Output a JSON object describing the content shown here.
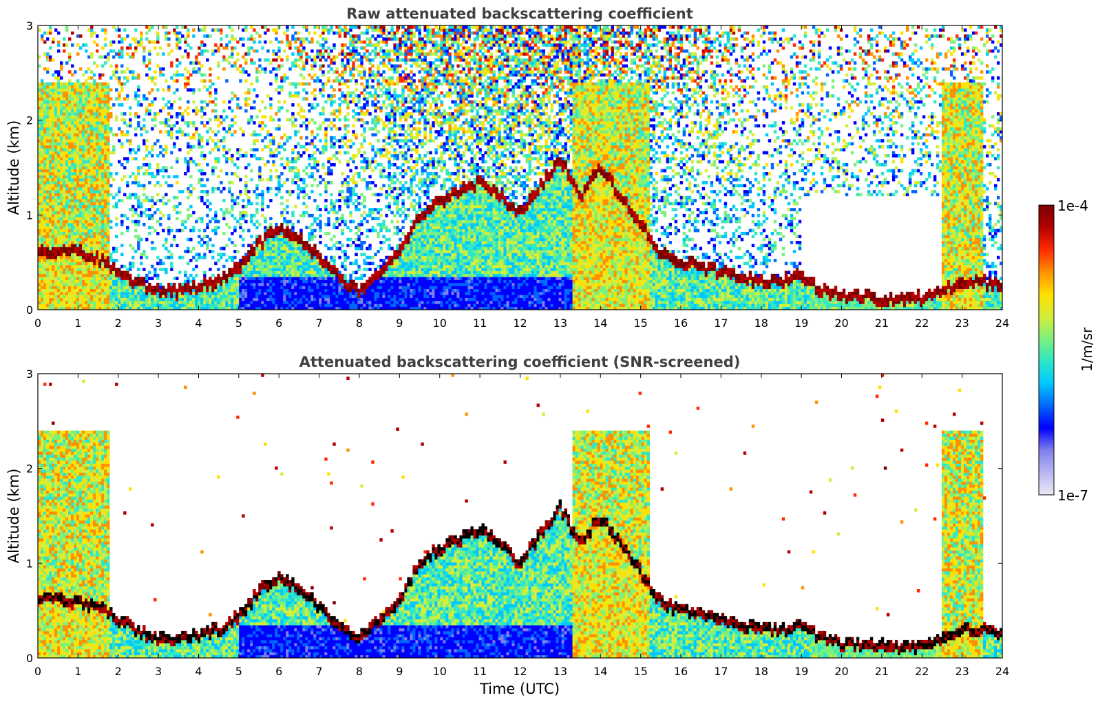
{
  "chart_data": [
    {
      "type": "heatmap",
      "title": "Raw attenuated backscattering coefficient",
      "xlabel": "",
      "ylabel": "Altitude (km)",
      "xlim": [
        0,
        24
      ],
      "ylim": [
        0,
        3
      ],
      "xticks": [
        "0",
        "1",
        "2",
        "3",
        "4",
        "5",
        "6",
        "7",
        "8",
        "9",
        "10",
        "11",
        "12",
        "13",
        "14",
        "15",
        "16",
        "17",
        "18",
        "19",
        "20",
        "21",
        "22",
        "23",
        "24"
      ],
      "yticks": [
        "0",
        "1",
        "2",
        "3"
      ],
      "screened": false
    },
    {
      "type": "heatmap",
      "title": "Attenuated backscattering coefficient (SNR-screened)",
      "xlabel": "Time (UTC)",
      "ylabel": "Altitude (km)",
      "xlim": [
        0,
        24
      ],
      "ylim": [
        0,
        3
      ],
      "xticks": [
        "0",
        "1",
        "2",
        "3",
        "4",
        "5",
        "6",
        "7",
        "8",
        "9",
        "10",
        "11",
        "12",
        "13",
        "14",
        "15",
        "16",
        "17",
        "18",
        "19",
        "20",
        "21",
        "22",
        "23",
        "24"
      ],
      "yticks": [
        "0",
        "1",
        "2",
        "3"
      ],
      "screened": true
    }
  ],
  "colorbar": {
    "label": "1/m/sr",
    "max_label": "1e-4",
    "min_label": "1e-7",
    "scale": "log",
    "range": [
      1e-07,
      0.0001
    ],
    "colormap": [
      "#ece9f7",
      "#b8b6f0",
      "#7f7fee",
      "#0000ff",
      "#0066ff",
      "#00c8ff",
      "#2ee6c8",
      "#7cf07c",
      "#d4ee3a",
      "#ffe000",
      "#ff9000",
      "#ff2a00",
      "#b40000",
      "#7a0000"
    ]
  },
  "features": {
    "cloud_layer": [
      [
        0,
        0.6
      ],
      [
        0.5,
        0.62
      ],
      [
        1,
        0.6
      ],
      [
        1.5,
        0.55
      ],
      [
        2,
        0.4
      ],
      [
        2.5,
        0.28
      ],
      [
        3,
        0.2
      ],
      [
        3.5,
        0.2
      ],
      [
        4,
        0.25
      ],
      [
        4.5,
        0.3
      ],
      [
        5,
        0.45
      ],
      [
        5.5,
        0.7
      ],
      [
        6,
        0.85
      ],
      [
        6.5,
        0.75
      ],
      [
        7,
        0.55
      ],
      [
        7.5,
        0.35
      ],
      [
        8,
        0.2
      ],
      [
        9,
        0.6
      ],
      [
        9.5,
        1.0
      ],
      [
        10,
        1.15
      ],
      [
        10.5,
        1.25
      ],
      [
        11,
        1.35
      ],
      [
        11.5,
        1.2
      ],
      [
        12,
        1.0
      ],
      [
        12.5,
        1.3
      ],
      [
        13,
        1.6
      ],
      [
        13.5,
        1.2
      ],
      [
        14,
        1.5
      ],
      [
        14.5,
        1.2
      ],
      [
        15,
        0.9
      ],
      [
        15.5,
        0.6
      ],
      [
        16,
        0.5
      ],
      [
        16.5,
        0.45
      ],
      [
        17,
        0.4
      ],
      [
        17.5,
        0.35
      ],
      [
        18,
        0.3
      ],
      [
        18.5,
        0.3
      ],
      [
        19,
        0.35
      ],
      [
        19.5,
        0.2
      ],
      [
        20,
        0.15
      ],
      [
        21,
        0.12
      ],
      [
        22,
        0.12
      ],
      [
        22.5,
        0.18
      ],
      [
        23,
        0.3
      ],
      [
        23.5,
        0.3
      ],
      [
        24,
        0.25
      ]
    ]
  }
}
